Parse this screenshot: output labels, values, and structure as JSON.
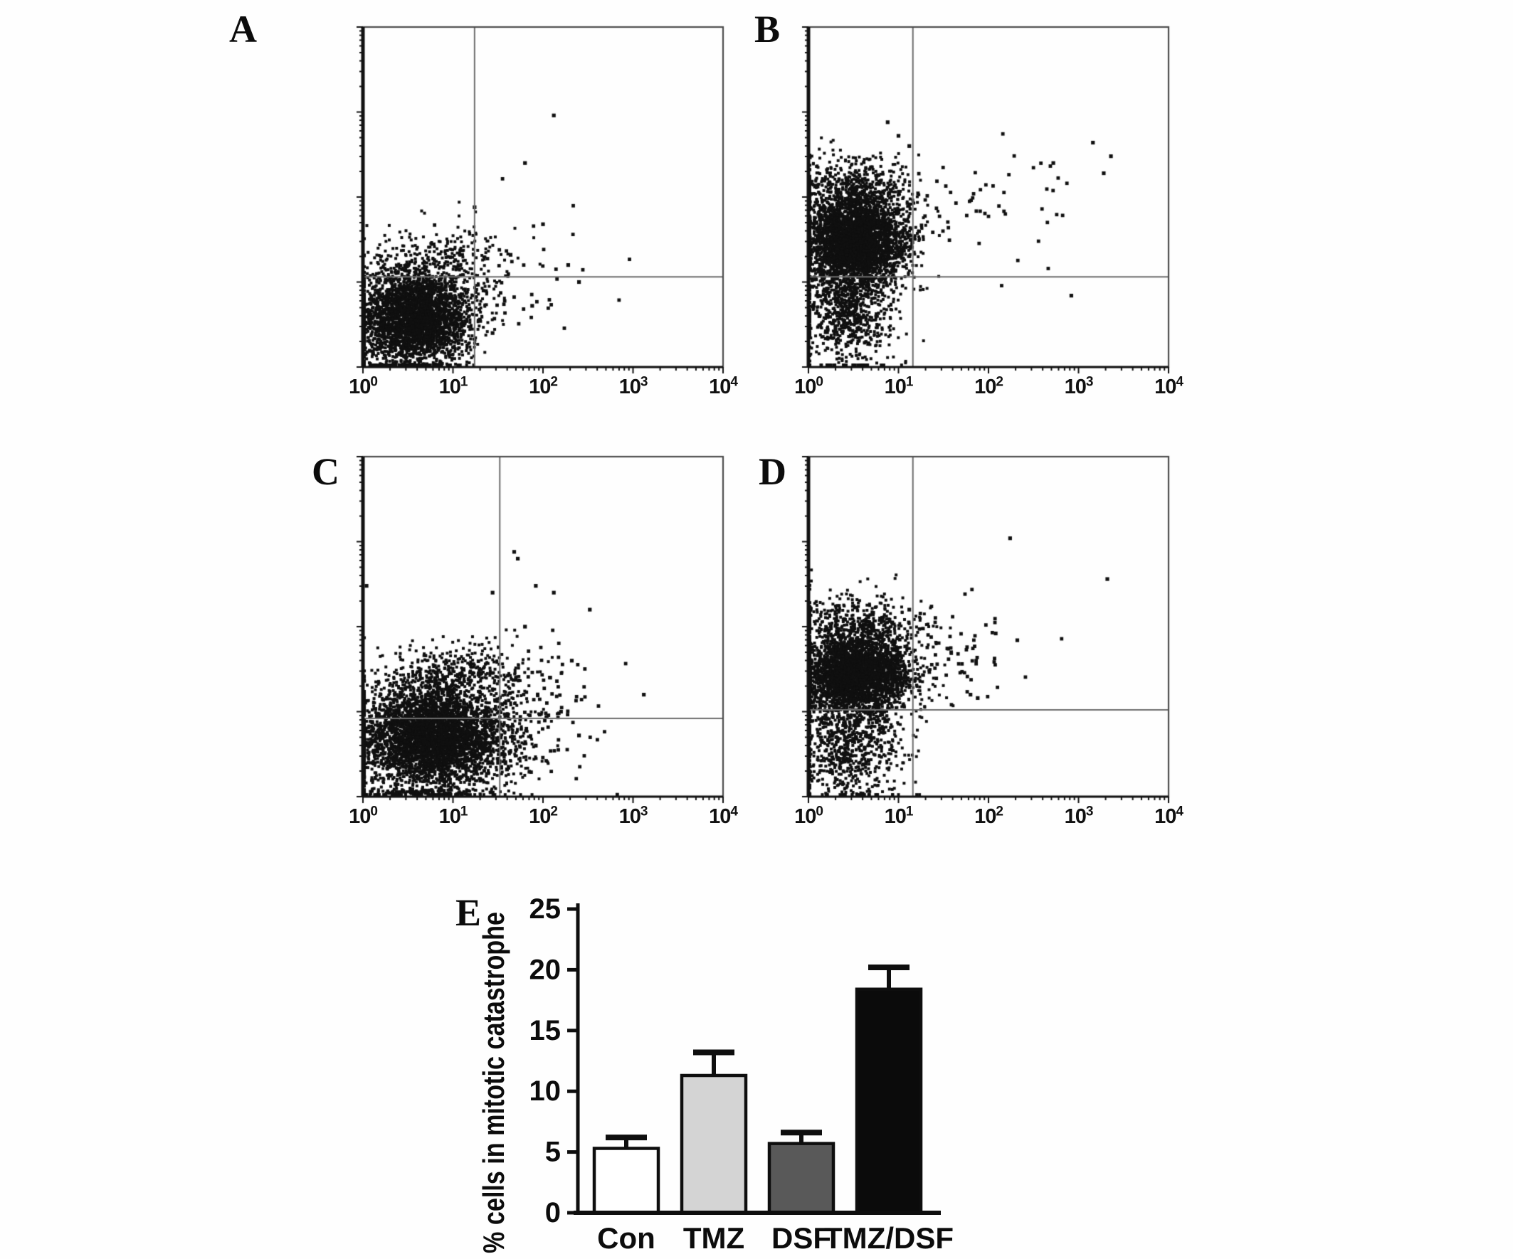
{
  "figure_background": "#fefefe",
  "chart_data": [
    {
      "type": "scatter",
      "panel": "A",
      "x_axis": {
        "scale": "log",
        "base": "10",
        "exponents": [
          "0",
          "1",
          "2",
          "3",
          "4"
        ]
      },
      "y_axis": {
        "scale": "log",
        "decades": 4,
        "tick_labels": "none"
      },
      "quadrant_gate": {
        "v": 0.31,
        "h": 0.265
      },
      "seed": 101,
      "clusters": [
        {
          "cx": 0.145,
          "cy": 0.14,
          "sx": 0.075,
          "sy": 0.07,
          "n": 3200,
          "r": 2
        },
        {
          "cx": 0.22,
          "cy": 0.3,
          "sx": 0.09,
          "sy": 0.055,
          "n": 330,
          "r": 2
        },
        {
          "cx": 0.42,
          "cy": 0.28,
          "sx": 0.1,
          "sy": 0.1,
          "n": 45,
          "r": 2.4
        }
      ],
      "outliers": [
        [
          0.53,
          0.74
        ],
        [
          0.45,
          0.6
        ],
        [
          0.31,
          0.47
        ],
        [
          0.5,
          0.42
        ],
        [
          0.57,
          0.3
        ],
        [
          0.6,
          0.25
        ],
        [
          0.47,
          0.18
        ],
        [
          0.36,
          0.1
        ],
        [
          0.41,
          0.33
        ]
      ]
    },
    {
      "type": "scatter",
      "panel": "B",
      "x_axis": {
        "scale": "log",
        "base": "10",
        "exponents": [
          "0",
          "1",
          "2",
          "3",
          "4"
        ]
      },
      "y_axis": {
        "scale": "log",
        "decades": 4,
        "tick_labels": "none"
      },
      "quadrant_gate": {
        "v": 0.29,
        "h": 0.265
      },
      "seed": 202,
      "clusters": [
        {
          "cx": 0.13,
          "cy": 0.37,
          "sx": 0.07,
          "sy": 0.06,
          "n": 3200,
          "r": 2
        },
        {
          "cx": 0.13,
          "cy": 0.52,
          "sx": 0.085,
          "sy": 0.055,
          "n": 600,
          "r": 2
        },
        {
          "cx": 0.11,
          "cy": 0.17,
          "sx": 0.065,
          "sy": 0.085,
          "n": 900,
          "r": 2
        },
        {
          "cx": 0.48,
          "cy": 0.47,
          "sx": 0.14,
          "sy": 0.08,
          "n": 60,
          "r": 2.4
        }
      ],
      "outliers": [
        [
          0.73,
          0.21
        ],
        [
          0.84,
          0.62
        ],
        [
          0.82,
          0.57
        ],
        [
          0.25,
          0.68
        ],
        [
          0.28,
          0.65
        ],
        [
          0.22,
          0.72
        ],
        [
          0.79,
          0.66
        ],
        [
          0.68,
          0.6
        ]
      ]
    },
    {
      "type": "scatter",
      "panel": "C",
      "x_axis": {
        "scale": "log",
        "base": "10",
        "exponents": [
          "0",
          "1",
          "2",
          "3",
          "4"
        ]
      },
      "y_axis": {
        "scale": "log",
        "decades": 4,
        "tick_labels": "none"
      },
      "quadrant_gate": {
        "v": 0.38,
        "h": 0.23
      },
      "seed": 303,
      "clusters": [
        {
          "cx": 0.2,
          "cy": 0.175,
          "sx": 0.105,
          "sy": 0.075,
          "n": 4200,
          "r": 2
        },
        {
          "cx": 0.26,
          "cy": 0.355,
          "sx": 0.095,
          "sy": 0.05,
          "n": 430,
          "r": 2
        },
        {
          "cx": 0.16,
          "cy": 0.012,
          "sx": 0.11,
          "sy": 0.006,
          "n": 140,
          "r": 2
        },
        {
          "cx": 0.5,
          "cy": 0.27,
          "sx": 0.085,
          "sy": 0.11,
          "n": 90,
          "r": 2.4
        }
      ],
      "outliers": [
        [
          0.42,
          0.72
        ],
        [
          0.43,
          0.7
        ],
        [
          0.36,
          0.6
        ],
        [
          0.48,
          0.62
        ],
        [
          0.53,
          0.6
        ],
        [
          0.45,
          0.5
        ],
        [
          0.63,
          0.55
        ],
        [
          0.58,
          0.4
        ],
        [
          0.52,
          0.35
        ],
        [
          0.55,
          0.25
        ],
        [
          0.6,
          0.18
        ],
        [
          0.48,
          0.15
        ],
        [
          0.4,
          0.08
        ],
        [
          0.01,
          0.62
        ],
        [
          0.78,
          0.3
        ]
      ]
    },
    {
      "type": "scatter",
      "panel": "D",
      "x_axis": {
        "scale": "log",
        "base": "10",
        "exponents": [
          "0",
          "1",
          "2",
          "3",
          "4"
        ]
      },
      "y_axis": {
        "scale": "log",
        "decades": 4,
        "tick_labels": "none"
      },
      "quadrant_gate": {
        "v": 0.29,
        "h": 0.255
      },
      "seed": 404,
      "clusters": [
        {
          "cx": 0.135,
          "cy": 0.36,
          "sx": 0.075,
          "sy": 0.055,
          "n": 3000,
          "r": 2
        },
        {
          "cx": 0.14,
          "cy": 0.5,
          "sx": 0.085,
          "sy": 0.05,
          "n": 520,
          "r": 2
        },
        {
          "cx": 0.11,
          "cy": 0.16,
          "sx": 0.075,
          "sy": 0.085,
          "n": 850,
          "r": 2
        },
        {
          "cx": 0.4,
          "cy": 0.42,
          "sx": 0.11,
          "sy": 0.06,
          "n": 70,
          "r": 2.4
        }
      ],
      "outliers": [
        [
          0.56,
          0.76
        ],
        [
          0.83,
          0.64
        ],
        [
          0.28,
          0.55
        ],
        [
          0.45,
          0.3
        ],
        [
          0.47,
          0.29
        ],
        [
          0.52,
          0.48
        ],
        [
          0.58,
          0.46
        ]
      ]
    },
    {
      "type": "bar",
      "panel": "E",
      "title": "",
      "categories": [
        "Con",
        "TMZ",
        "DSF",
        "TMZ/DSF"
      ],
      "values": [
        5.3,
        11.3,
        5.7,
        18.4
      ],
      "errors_upper": [
        0.9,
        1.9,
        0.9,
        1.8
      ],
      "bar_colors": [
        "#ffffff",
        "#d4d4d4",
        "#595959",
        "#0b0b0b"
      ],
      "bar_outline": "#0e0e0e",
      "xlabel": "",
      "ylabel": "% cells in mitotic catastrophe",
      "yticks": [
        0,
        5,
        10,
        15,
        20,
        25
      ],
      "ylim": [
        0,
        25
      ],
      "grid": false,
      "legend": "none"
    }
  ]
}
